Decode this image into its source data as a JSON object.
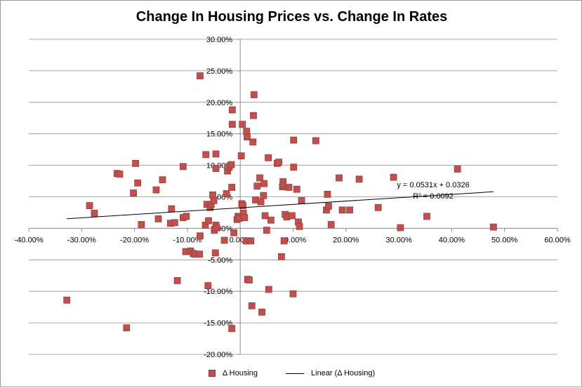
{
  "chart_data": {
    "type": "scatter",
    "title": "Change In Housing Prices vs. Change In Rates",
    "xlabel": "",
    "ylabel": "",
    "xlim": [
      -0.4,
      0.6
    ],
    "ylim": [
      -0.2,
      0.3
    ],
    "x_ticks": [
      -0.4,
      -0.3,
      -0.2,
      -0.1,
      0.0,
      0.1,
      0.2,
      0.3,
      0.4,
      0.5,
      0.6
    ],
    "x_tick_labels": [
      "-40.00%",
      "-30.00%",
      "-20.00%",
      "-10.00%",
      "0.00%",
      "10.00%",
      "20.00%",
      "30.00%",
      "40.00%",
      "50.00%",
      "60.00%"
    ],
    "y_ticks": [
      -0.2,
      -0.15,
      -0.1,
      -0.05,
      0.0,
      0.05,
      0.1,
      0.15,
      0.2,
      0.25,
      0.3
    ],
    "y_tick_labels": [
      "-20.00%",
      "-15.00%",
      "-10.00%",
      "-5.00%",
      "0.00%",
      "5.00%",
      "10.00%",
      "15.00%",
      "20.00%",
      "25.00%",
      "30.00%"
    ],
    "grid": "horizontal major gridlines",
    "legend_position": "bottom",
    "series": [
      {
        "name": "Δ Housing",
        "color": "#c0504d",
        "marker": "square",
        "points": [
          [
            -0.328,
            -0.114
          ],
          [
            -0.285,
            0.036
          ],
          [
            -0.276,
            0.024
          ],
          [
            -0.233,
            0.087
          ],
          [
            -0.228,
            0.086
          ],
          [
            -0.215,
            -0.158
          ],
          [
            -0.198,
            0.103
          ],
          [
            -0.202,
            0.056
          ],
          [
            -0.194,
            0.072
          ],
          [
            -0.187,
            0.006
          ],
          [
            -0.159,
            0.061
          ],
          [
            -0.155,
            0.015
          ],
          [
            -0.147,
            0.077
          ],
          [
            -0.132,
            0.008
          ],
          [
            -0.13,
            0.031
          ],
          [
            -0.124,
            0.009
          ],
          [
            -0.119,
            -0.083
          ],
          [
            -0.108,
            0.098
          ],
          [
            -0.108,
            0.017
          ],
          [
            -0.102,
            0.019
          ],
          [
            -0.103,
            -0.037
          ],
          [
            -0.094,
            -0.036
          ],
          [
            -0.089,
            -0.04
          ],
          [
            -0.086,
            -0.041
          ],
          [
            -0.076,
            -0.012
          ],
          [
            -0.077,
            -0.041
          ],
          [
            -0.076,
            0.242
          ],
          [
            -0.065,
            0.117
          ],
          [
            -0.066,
            0.005
          ],
          [
            -0.063,
            0.038
          ],
          [
            -0.061,
            -0.091
          ],
          [
            -0.06,
            0.012
          ],
          [
            -0.057,
            0.033
          ],
          [
            -0.055,
            0.038
          ],
          [
            -0.052,
            0.053
          ],
          [
            -0.05,
            0.044
          ],
          [
            -0.049,
            -0.003
          ],
          [
            -0.046,
            0.118
          ],
          [
            -0.046,
            0.095
          ],
          [
            -0.047,
            -0.039
          ],
          [
            -0.046,
            0.005
          ],
          [
            -0.045,
            0.001
          ],
          [
            -0.03,
            -0.019
          ],
          [
            -0.026,
            0.055
          ],
          [
            -0.024,
            0.091
          ],
          [
            -0.021,
            0.097
          ],
          [
            -0.017,
            0.101
          ],
          [
            -0.015,
            0.188
          ],
          [
            -0.015,
            0.165
          ],
          [
            -0.016,
            0.065
          ],
          [
            -0.016,
            -0.159
          ],
          [
            -0.012,
            -0.007
          ],
          [
            -0.006,
            0.014
          ],
          [
            -0.004,
            0.019
          ],
          [
            -0.002,
            0.016
          ],
          [
            0.004,
            0.165
          ],
          [
            0.002,
            0.115
          ],
          [
            0.003,
            0.039
          ],
          [
            0.005,
            0.036
          ],
          [
            0.006,
            0.024
          ],
          [
            0.008,
            0.017
          ],
          [
            0.011,
            -0.02
          ],
          [
            0.012,
            0.154
          ],
          [
            0.013,
            0.145
          ],
          [
            0.014,
            -0.081
          ],
          [
            0.017,
            -0.082
          ],
          [
            0.02,
            -0.02
          ],
          [
            0.022,
            -0.123
          ],
          [
            0.024,
            0.137
          ],
          [
            0.025,
            0.179
          ],
          [
            0.026,
            0.212
          ],
          [
            0.029,
            0.045
          ],
          [
            0.032,
            0.067
          ],
          [
            0.037,
            0.08
          ],
          [
            0.039,
            0.042
          ],
          [
            0.041,
            -0.133
          ],
          [
            0.044,
            0.052
          ],
          [
            0.045,
            0.071
          ],
          [
            0.047,
            0.02
          ],
          [
            0.05,
            -0.003
          ],
          [
            0.053,
            0.112
          ],
          [
            0.054,
            -0.097
          ],
          [
            0.058,
            0.013
          ],
          [
            0.07,
            0.103
          ],
          [
            0.073,
            0.105
          ],
          [
            0.078,
            -0.045
          ],
          [
            0.08,
            0.066
          ],
          [
            0.081,
            0.074
          ],
          [
            0.081,
            0.069
          ],
          [
            0.083,
            -0.02
          ],
          [
            0.085,
            0.022
          ],
          [
            0.088,
            0.018
          ],
          [
            0.092,
            0.065
          ],
          [
            0.098,
            0.02
          ],
          [
            0.1,
            -0.104
          ],
          [
            0.101,
            0.14
          ],
          [
            0.101,
            0.097
          ],
          [
            0.107,
            0.062
          ],
          [
            0.11,
            0.01
          ],
          [
            0.112,
            0.003
          ],
          [
            0.116,
            0.044
          ],
          [
            0.143,
            0.139
          ],
          [
            0.163,
            0.029
          ],
          [
            0.165,
            0.054
          ],
          [
            0.167,
            0.035
          ],
          [
            0.172,
            0.006
          ],
          [
            0.187,
            0.08
          ],
          [
            0.193,
            0.029
          ],
          [
            0.207,
            0.029
          ],
          [
            0.225,
            0.078
          ],
          [
            0.261,
            0.033
          ],
          [
            0.29,
            0.081
          ],
          [
            0.303,
            0.001
          ],
          [
            0.353,
            0.019
          ],
          [
            0.411,
            0.094
          ],
          [
            0.479,
            0.002
          ]
        ]
      },
      {
        "name": "Linear (Δ Housing)",
        "color": "#000000",
        "type": "trendline",
        "slope": 0.0531,
        "intercept": 0.0326,
        "x_range": [
          -0.328,
          0.479
        ]
      }
    ],
    "annotations": {
      "equation": "y = 0.0531x + 0.0326",
      "r_squared": "R² = 0.0092"
    }
  }
}
